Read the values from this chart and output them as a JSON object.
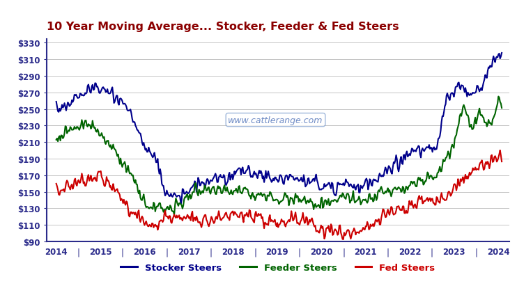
{
  "title": "10 Year Moving Average... Stocker, Feeder & Fed Steers",
  "title_color": "#8B0000",
  "title_fontsize": 11.5,
  "bg_color": "#FFFFFF",
  "plot_bg_color": "#FFFFFF",
  "watermark": "www.cattlerange.com",
  "ylim": [
    90,
    335
  ],
  "yticks": [
    90,
    110,
    130,
    150,
    170,
    190,
    210,
    230,
    250,
    270,
    290,
    310,
    330
  ],
  "xlabel_years": [
    "2014",
    "2015",
    "2016",
    "2017",
    "2018",
    "2019",
    "2020",
    "2021",
    "2022",
    "2023",
    "2024"
  ],
  "stocker_color": "#00008B",
  "feeder_color": "#006400",
  "fed_color": "#CC0000",
  "legend_labels": [
    "Stocker Steers",
    "Feeder Steers",
    "Fed Steers"
  ],
  "x_start": 2014.0,
  "x_end": 2024.08,
  "xlim_left": 2013.78,
  "xlim_right": 2024.25
}
